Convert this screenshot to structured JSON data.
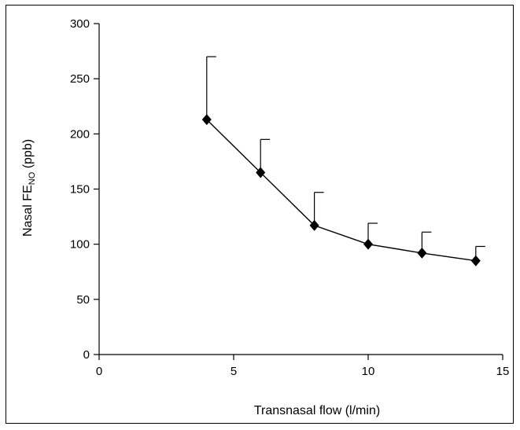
{
  "chart_data": {
    "type": "line",
    "xlabel": "Transnasal flow (l/min)",
    "ylabel_main": "Nasal FE",
    "ylabel_sub": "NO",
    "ylabel_tail": " (ppb)",
    "xlim": [
      0,
      15
    ],
    "ylim": [
      0,
      300
    ],
    "xticks": [
      0,
      5,
      10,
      15
    ],
    "yticks": [
      0,
      50,
      100,
      150,
      200,
      250,
      300
    ],
    "grid": false,
    "marker": "diamond",
    "error_bars": "upper only",
    "series": [
      {
        "x": [
          4,
          6,
          8,
          10,
          12,
          14
        ],
        "y": [
          213,
          165,
          117,
          100,
          92,
          85
        ],
        "y_upper": [
          270,
          195,
          147,
          119,
          111,
          98
        ]
      }
    ]
  }
}
